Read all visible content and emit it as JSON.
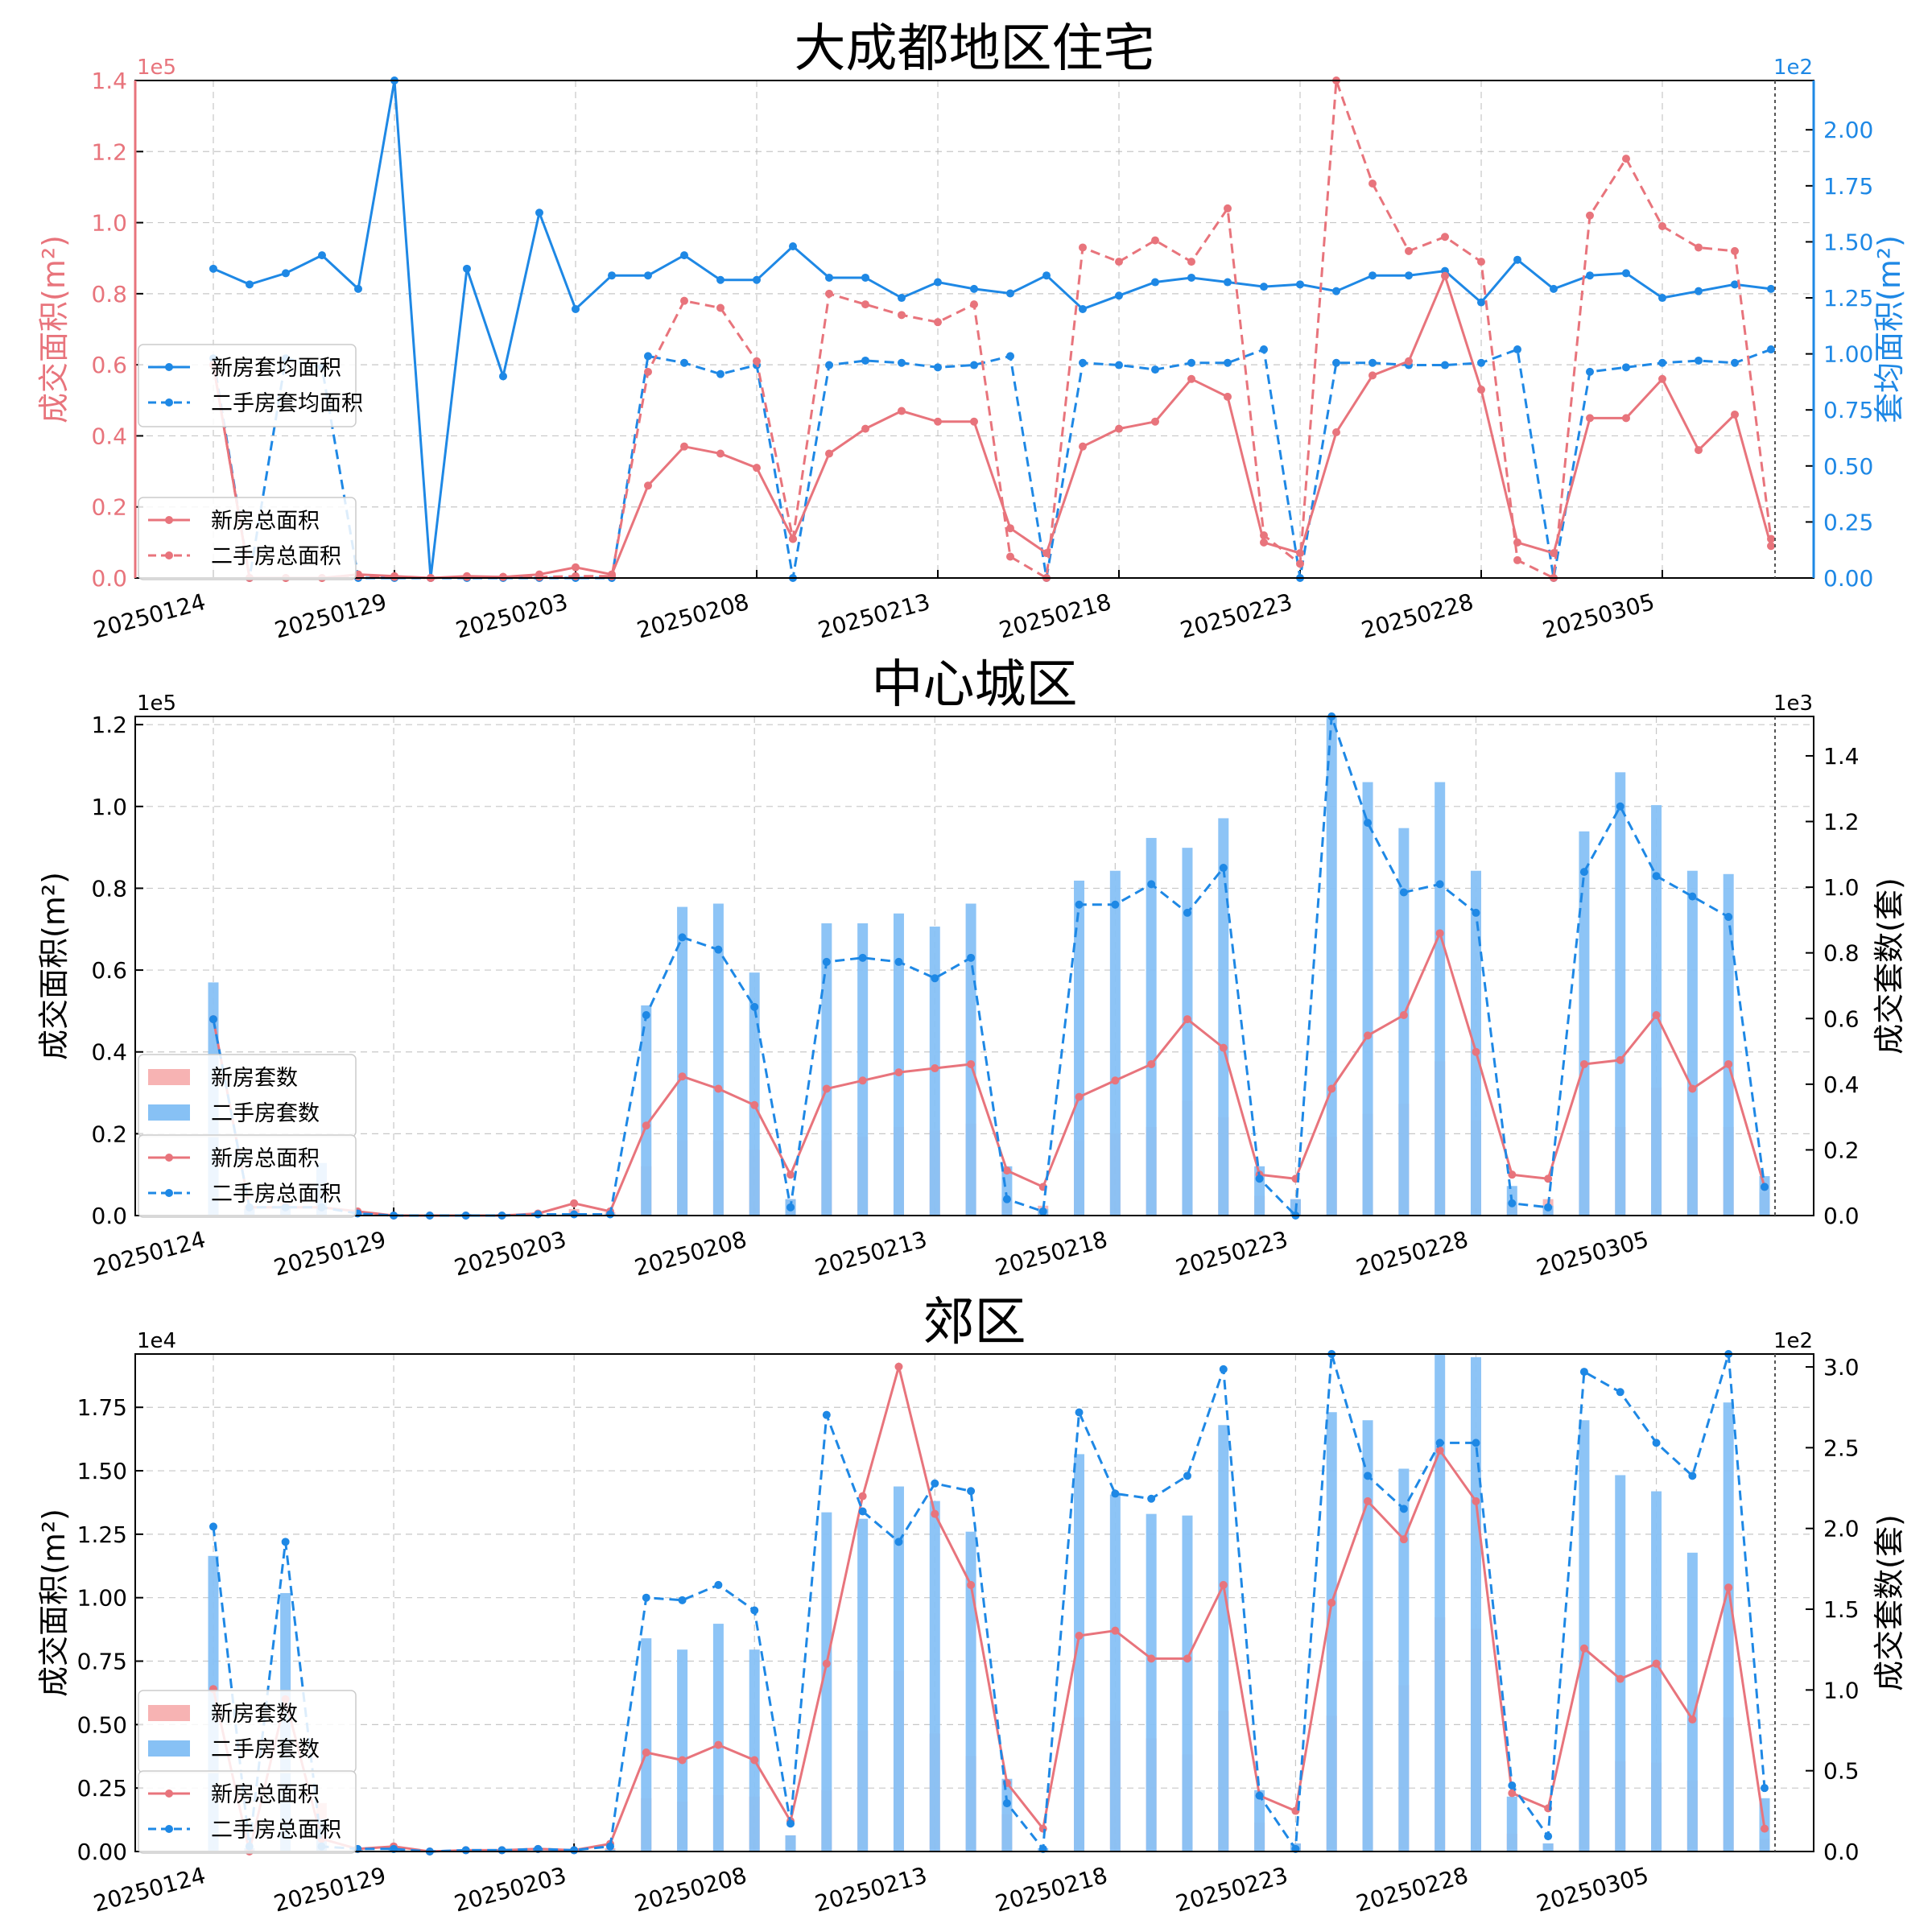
{
  "chart_data": [
    {
      "type": "line",
      "title": "大成都地区住宅",
      "left_ylabel": "成交面积(m²)",
      "right_ylabel": "套均面积(m²)",
      "left_multiplier": "1e5",
      "right_multiplier": "1e2",
      "left_color": "#e8747c",
      "right_color": "#1e88e5",
      "left_ylim": [
        0,
        1.4
      ],
      "right_ylim": [
        0,
        2.22
      ],
      "left_ticks": [
        "0.0",
        "0.2",
        "0.4",
        "0.6",
        "0.8",
        "1.0",
        "1.2",
        "1.4"
      ],
      "right_ticks": [
        "0.00",
        "0.25",
        "0.50",
        "0.75",
        "1.00",
        "1.25",
        "1.50",
        "1.75",
        "2.00"
      ],
      "x_ticks": [
        "20250124",
        "20250129",
        "20250203",
        "20250208",
        "20250213",
        "20250218",
        "20250223",
        "20250228",
        "20250305"
      ],
      "series": [
        {
          "name": "新房套均面积",
          "axis": "right",
          "style": "solid",
          "color": "#1e88e5",
          "values": [
            1.38,
            1.31,
            1.36,
            1.44,
            1.29,
            2.22,
            0,
            1.38,
            0.9,
            1.63,
            1.2,
            1.35,
            1.35,
            1.44,
            1.33,
            1.33,
            1.48,
            1.34,
            1.34,
            1.25,
            1.32,
            1.29,
            1.27,
            1.35,
            1.2,
            1.26,
            1.32,
            1.34,
            1.32,
            1.3,
            1.31,
            1.28,
            1.35,
            1.35,
            1.37,
            1.23,
            1.42,
            1.29,
            1.35,
            1.36,
            1.25,
            1.28,
            1.31,
            1.29
          ]
        },
        {
          "name": "二手房套均面积",
          "axis": "right",
          "style": "dashed",
          "color": "#1e88e5",
          "values": [
            0.98,
            0,
            0.98,
            0.94,
            0,
            0,
            0,
            0,
            0,
            0,
            0,
            0,
            0.99,
            0.96,
            0.91,
            0.95,
            0,
            0.95,
            0.97,
            0.96,
            0.94,
            0.95,
            0.99,
            0,
            0.96,
            0.95,
            0.93,
            0.96,
            0.96,
            1.02,
            0,
            0.96,
            0.96,
            0.95,
            0.95,
            0.96,
            1.02,
            0,
            0.92,
            0.94,
            0.96,
            0.97,
            0.96,
            1.02
          ]
        },
        {
          "name": "新房总面积",
          "axis": "left",
          "style": "solid",
          "color": "#e8747c",
          "values": [
            0.6,
            0,
            0,
            0,
            0.01,
            0.005,
            0,
            0.005,
            0.003,
            0.01,
            0.03,
            0.01,
            0.26,
            0.37,
            0.35,
            0.31,
            0.11,
            0.35,
            0.42,
            0.47,
            0.44,
            0.44,
            0.14,
            0.07,
            0.37,
            0.42,
            0.44,
            0.56,
            0.51,
            0.1,
            0.07,
            0.41,
            0.57,
            0.61,
            0.85,
            0.53,
            0.1,
            0.07,
            0.45,
            0.45,
            0.56,
            0.36,
            0.46,
            0.09
          ]
        },
        {
          "name": "二手房总面积",
          "axis": "left",
          "style": "dashed",
          "color": "#e8747c",
          "values": [
            0.6,
            0,
            0,
            0,
            0.005,
            0.003,
            0,
            0.003,
            0.003,
            0.003,
            0.005,
            0.005,
            0.58,
            0.78,
            0.76,
            0.61,
            0.11,
            0.8,
            0.77,
            0.74,
            0.72,
            0.77,
            0.06,
            0,
            0.93,
            0.89,
            0.95,
            0.89,
            1.04,
            0.12,
            0.04,
            1.4,
            1.11,
            0.92,
            0.96,
            0.89,
            0.05,
            0,
            1.02,
            1.18,
            0.99,
            0.93,
            0.92,
            0.11
          ]
        }
      ],
      "legend": [
        "新房套均面积",
        "二手房套均面积",
        "新房总面积",
        "二手房总面积"
      ]
    },
    {
      "type": "bar",
      "title": "中心城区",
      "left_ylabel": "成交面积(m²)",
      "right_ylabel": "成交套数(套)",
      "left_multiplier": "1e5",
      "right_multiplier": "1e3",
      "left_ylim": [
        0,
        1.22
      ],
      "right_ylim": [
        0,
        1.52
      ],
      "left_ticks": [
        "0.0",
        "0.2",
        "0.4",
        "0.6",
        "0.8",
        "1.0",
        "1.2"
      ],
      "right_ticks": [
        "0.0",
        "0.2",
        "0.4",
        "0.6",
        "0.8",
        "1.0",
        "1.2",
        "1.4"
      ],
      "x_ticks": [
        "20250124",
        "20250129",
        "20250203",
        "20250208",
        "20250213",
        "20250218",
        "20250223",
        "20250228",
        "20250305"
      ],
      "bars": [
        {
          "name": "新房套数",
          "axis": "right",
          "color": "#f7b3b3",
          "values": [
            0.4,
            0.03,
            0.04,
            0.03,
            0.01,
            0.005,
            0,
            0.005,
            0.005,
            0.01,
            0.02,
            0.01,
            0.15,
            0.23,
            0.23,
            0.2,
            0.05,
            0.23,
            0.24,
            0.27,
            0.26,
            0.28,
            0.05,
            0.03,
            0.23,
            0.25,
            0.27,
            0.35,
            0.3,
            0.06,
            0.05,
            0.24,
            0.31,
            0.34,
            0.47,
            0.29,
            0.04,
            0.05,
            0.26,
            0.27,
            0.39,
            0.24,
            0.27,
            0.07
          ]
        },
        {
          "name": "二手房套数",
          "axis": "right",
          "color": "#87c1f5",
          "values": [
            0.71,
            0.02,
            0.02,
            0.16,
            0.01,
            0.005,
            0,
            0.005,
            0.005,
            0.005,
            0.005,
            0.005,
            0.64,
            0.94,
            0.95,
            0.74,
            0.05,
            0.89,
            0.89,
            0.92,
            0.88,
            0.95,
            0.15,
            0.02,
            1.02,
            1.05,
            1.15,
            1.12,
            1.21,
            0.15,
            0.05,
            1.52,
            1.32,
            1.18,
            1.32,
            1.05,
            0.09,
            0.03,
            1.17,
            1.35,
            1.25,
            1.05,
            1.04,
            0.12
          ]
        }
      ],
      "series": [
        {
          "name": "新房总面积",
          "axis": "left",
          "style": "solid",
          "color": "#e8747c",
          "values": [
            0.48,
            0.02,
            0.02,
            0.02,
            0.01,
            0,
            0,
            0,
            0,
            0.005,
            0.03,
            0.01,
            0.22,
            0.34,
            0.31,
            0.27,
            0.1,
            0.31,
            0.33,
            0.35,
            0.36,
            0.37,
            0.11,
            0.07,
            0.29,
            0.33,
            0.37,
            0.48,
            0.41,
            0.1,
            0.09,
            0.31,
            0.44,
            0.49,
            0.69,
            0.4,
            0.1,
            0.09,
            0.37,
            0.38,
            0.49,
            0.31,
            0.37,
            0.07
          ]
        },
        {
          "name": "二手房总面积",
          "axis": "left",
          "style": "dashed",
          "color": "#1e88e5",
          "values": [
            0.48,
            0.02,
            0.02,
            0.02,
            0.005,
            0,
            0,
            0,
            0,
            0.003,
            0.003,
            0.003,
            0.49,
            0.68,
            0.65,
            0.51,
            0.02,
            0.62,
            0.63,
            0.62,
            0.58,
            0.63,
            0.04,
            0.01,
            0.76,
            0.76,
            0.81,
            0.74,
            0.85,
            0.09,
            0,
            1.22,
            0.96,
            0.79,
            0.81,
            0.74,
            0.03,
            0.02,
            0.84,
            1.0,
            0.83,
            0.78,
            0.73,
            0.07
          ]
        }
      ],
      "legend": [
        "新房套数",
        "二手房套数",
        "新房总面积",
        "二手房总面积"
      ]
    },
    {
      "type": "bar",
      "title": "郊区",
      "left_ylabel": "成交面积(m²)",
      "right_ylabel": "成交套数(套)",
      "left_multiplier": "1e4",
      "right_multiplier": "1e2",
      "left_ylim": [
        0,
        1.96
      ],
      "right_ylim": [
        0,
        3.08
      ],
      "left_ticks": [
        "0.00",
        "0.25",
        "0.50",
        "0.75",
        "1.00",
        "1.25",
        "1.50",
        "1.75"
      ],
      "right_ticks": [
        "0.0",
        "0.5",
        "1.0",
        "1.5",
        "2.0",
        "2.5",
        "3.0"
      ],
      "x_ticks": [
        "20250124",
        "20250129",
        "20250203",
        "20250208",
        "20250213",
        "20250218",
        "20250223",
        "20250228",
        "20250305"
      ],
      "bars": [
        {
          "name": "新房套数",
          "axis": "right",
          "color": "#f7b3b3",
          "values": [
            0.8,
            0.02,
            0.8,
            0.3,
            0.02,
            0.01,
            0,
            0.01,
            0.01,
            0.02,
            0.01,
            0.02,
            0.33,
            0.31,
            0.35,
            0.34,
            0.1,
            0.38,
            0.75,
            1.12,
            0.73,
            0.59,
            0.23,
            0.01,
            0.83,
            0.81,
            0.7,
            0.6,
            0.87,
            0.18,
            0.05,
            0.84,
            1.18,
            1.03,
            1.45,
            1.38,
            0.11,
            0.05,
            0.75,
            0.56,
            0.55,
            0.44,
            0.83,
            0.08
          ]
        },
        {
          "name": "二手房套数",
          "axis": "right",
          "color": "#87c1f5",
          "values": [
            1.83,
            0.02,
            1.6,
            0.2,
            0.01,
            0.01,
            0,
            0.005,
            0.005,
            0.01,
            0.005,
            0.01,
            1.32,
            1.25,
            1.41,
            1.25,
            0.1,
            2.1,
            2.06,
            2.26,
            2.17,
            1.98,
            0.45,
            0.02,
            2.46,
            2.21,
            2.09,
            2.08,
            2.64,
            0.38,
            0.05,
            2.72,
            2.67,
            2.37,
            3.08,
            3.06,
            0.34,
            0.05,
            2.67,
            2.33,
            2.23,
            1.85,
            2.78,
            0.33
          ]
        }
      ],
      "series": [
        {
          "name": "新房总面积",
          "axis": "left",
          "style": "solid",
          "color": "#e8747c",
          "values": [
            0.64,
            0,
            0.6,
            0.05,
            0.01,
            0.02,
            0,
            0.005,
            0.005,
            0.01,
            0.005,
            0.03,
            0.39,
            0.36,
            0.42,
            0.36,
            0.12,
            0.74,
            1.4,
            1.91,
            1.33,
            1.05,
            0.27,
            0.09,
            0.85,
            0.87,
            0.76,
            0.76,
            1.05,
            0.22,
            0.16,
            0.98,
            1.38,
            1.23,
            1.58,
            1.38,
            0.23,
            0.17,
            0.8,
            0.68,
            0.74,
            0.52,
            1.04,
            0.09
          ]
        },
        {
          "name": "二手房总面积",
          "axis": "left",
          "style": "dashed",
          "color": "#1e88e5",
          "values": [
            1.28,
            0.02,
            1.22,
            0.02,
            0.01,
            0.01,
            0,
            0.005,
            0.005,
            0.01,
            0.005,
            0.02,
            1.0,
            0.99,
            1.05,
            0.95,
            0.11,
            1.72,
            1.34,
            1.22,
            1.45,
            1.42,
            0.19,
            0.01,
            1.73,
            1.41,
            1.39,
            1.48,
            1.9,
            0.22,
            0.01,
            1.96,
            1.48,
            1.35,
            1.61,
            1.61,
            0.26,
            0.06,
            1.89,
            1.81,
            1.61,
            1.48,
            1.96,
            0.25
          ]
        }
      ],
      "legend": [
        "新房套数",
        "二手房套数",
        "新房总面积",
        "二手房总面积"
      ]
    }
  ]
}
